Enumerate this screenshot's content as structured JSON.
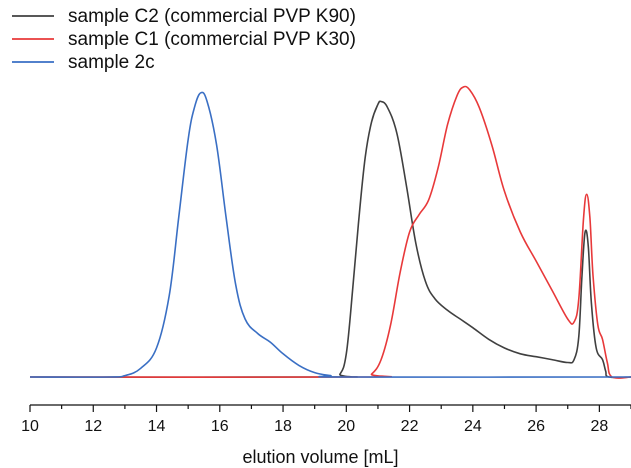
{
  "chart_data": {
    "type": "line",
    "xlabel": "elution volume [mL]",
    "ylabel": "",
    "xlim": [
      10,
      29
    ],
    "ylim": [
      0,
      1.0
    ],
    "x_ticks": [
      10,
      12,
      14,
      16,
      18,
      20,
      22,
      24,
      26,
      28
    ],
    "x_tick_labels": [
      "10",
      "12",
      "14",
      "16",
      "18",
      "20",
      "22",
      "24",
      "26",
      "28"
    ],
    "y_axis_visible": false,
    "legend_position": "top-left",
    "series": [
      {
        "name": "sample C2 (commercial PVP K90)",
        "color": "#404040",
        "points": [
          [
            10,
            0
          ],
          [
            19.5,
            0
          ],
          [
            19.8,
            0.01
          ],
          [
            20.0,
            0.08
          ],
          [
            20.2,
            0.3
          ],
          [
            20.4,
            0.55
          ],
          [
            20.6,
            0.76
          ],
          [
            20.8,
            0.88
          ],
          [
            21.0,
            0.94
          ],
          [
            21.1,
            0.95
          ],
          [
            21.3,
            0.93
          ],
          [
            21.6,
            0.84
          ],
          [
            21.9,
            0.66
          ],
          [
            22.2,
            0.46
          ],
          [
            22.5,
            0.33
          ],
          [
            22.8,
            0.27
          ],
          [
            23.2,
            0.23
          ],
          [
            23.6,
            0.2
          ],
          [
            24.0,
            0.17
          ],
          [
            24.5,
            0.13
          ],
          [
            25.0,
            0.1
          ],
          [
            25.5,
            0.08
          ],
          [
            26.0,
            0.07
          ],
          [
            26.5,
            0.06
          ],
          [
            27.0,
            0.05
          ],
          [
            27.2,
            0.06
          ],
          [
            27.35,
            0.14
          ],
          [
            27.45,
            0.35
          ],
          [
            27.55,
            0.5
          ],
          [
            27.65,
            0.45
          ],
          [
            27.75,
            0.25
          ],
          [
            27.9,
            0.1
          ],
          [
            28.1,
            0.06
          ],
          [
            28.2,
            0.02
          ],
          [
            28.3,
            0
          ],
          [
            29,
            0
          ]
        ]
      },
      {
        "name": "sample C1 (commercial PVP K30)",
        "color": "#e8393a",
        "points": [
          [
            10,
            0
          ],
          [
            20.5,
            0
          ],
          [
            20.8,
            0.01
          ],
          [
            21.1,
            0.06
          ],
          [
            21.4,
            0.18
          ],
          [
            21.7,
            0.36
          ],
          [
            22.0,
            0.5
          ],
          [
            22.3,
            0.56
          ],
          [
            22.6,
            0.61
          ],
          [
            22.9,
            0.72
          ],
          [
            23.2,
            0.87
          ],
          [
            23.5,
            0.97
          ],
          [
            23.7,
            1.0
          ],
          [
            23.9,
            0.99
          ],
          [
            24.2,
            0.93
          ],
          [
            24.6,
            0.8
          ],
          [
            25.0,
            0.64
          ],
          [
            25.5,
            0.5
          ],
          [
            26.0,
            0.4
          ],
          [
            26.5,
            0.3
          ],
          [
            27.0,
            0.2
          ],
          [
            27.2,
            0.19
          ],
          [
            27.35,
            0.27
          ],
          [
            27.5,
            0.55
          ],
          [
            27.6,
            0.63
          ],
          [
            27.7,
            0.55
          ],
          [
            27.8,
            0.35
          ],
          [
            27.95,
            0.18
          ],
          [
            28.1,
            0.13
          ],
          [
            28.25,
            0.05
          ],
          [
            28.4,
            0
          ],
          [
            29,
            0
          ]
        ]
      },
      {
        "name": "sample 2c",
        "color": "#3a6fc4",
        "points": [
          [
            10,
            0
          ],
          [
            12.5,
            0
          ],
          [
            13.0,
            0.005
          ],
          [
            13.5,
            0.03
          ],
          [
            14.0,
            0.1
          ],
          [
            14.4,
            0.28
          ],
          [
            14.7,
            0.55
          ],
          [
            15.0,
            0.82
          ],
          [
            15.2,
            0.93
          ],
          [
            15.4,
            0.98
          ],
          [
            15.6,
            0.95
          ],
          [
            15.9,
            0.8
          ],
          [
            16.2,
            0.55
          ],
          [
            16.5,
            0.32
          ],
          [
            16.8,
            0.2
          ],
          [
            17.2,
            0.15
          ],
          [
            17.6,
            0.12
          ],
          [
            18.0,
            0.08
          ],
          [
            18.5,
            0.04
          ],
          [
            19.0,
            0.015
          ],
          [
            19.5,
            0.005
          ],
          [
            20.0,
            0
          ],
          [
            29,
            0
          ]
        ]
      }
    ]
  }
}
